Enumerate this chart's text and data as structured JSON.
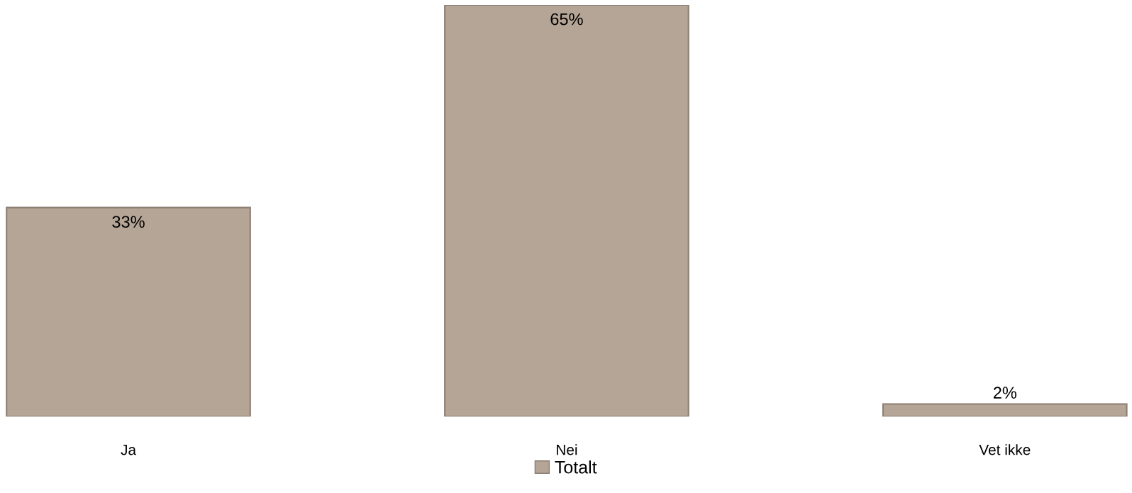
{
  "chart_data": {
    "type": "bar",
    "categories": [
      "Ja",
      "Nei",
      "Vet ikke"
    ],
    "series": [
      {
        "name": "Totalt",
        "color": "#b5a596",
        "values": [
          33,
          65,
          2
        ],
        "value_labels": [
          "33%",
          "65%",
          "2%"
        ]
      }
    ],
    "legend": "bottom",
    "grid": false
  }
}
